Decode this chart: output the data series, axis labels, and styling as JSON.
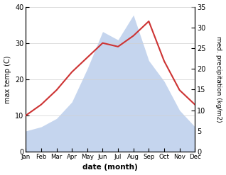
{
  "months": [
    "Jan",
    "Feb",
    "Mar",
    "Apr",
    "May",
    "Jun",
    "Jul",
    "Aug",
    "Sep",
    "Oct",
    "Nov",
    "Dec"
  ],
  "temperature": [
    10,
    13,
    17,
    22,
    26,
    30,
    29,
    32,
    36,
    25,
    17,
    13
  ],
  "precipitation": [
    5,
    6,
    8,
    12,
    20,
    29,
    27,
    33,
    22,
    17,
    10,
    6
  ],
  "temp_color": "#cd3333",
  "precip_color": "#c5d5ee",
  "temp_ylim": [
    0,
    40
  ],
  "precip_ylim": [
    0,
    35
  ],
  "temp_yticks": [
    0,
    10,
    20,
    30,
    40
  ],
  "precip_yticks": [
    0,
    5,
    10,
    15,
    20,
    25,
    30,
    35
  ],
  "xlabel": "date (month)",
  "ylabel_left": "max temp (C)",
  "ylabel_right": "med. precipitation (kg/m2)",
  "bg_color": "#ffffff",
  "grid_color": "#d0d0d0"
}
